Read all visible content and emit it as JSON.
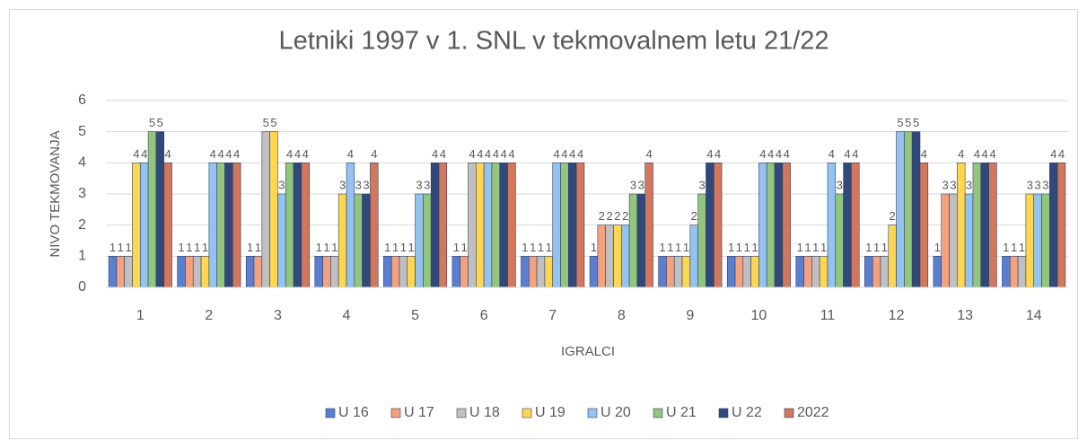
{
  "chart_data": {
    "type": "bar",
    "title": "Letniki 1997 v 1. SNL v tekmovalnem letu 21/22",
    "x_label": "IGRALCI",
    "y_label": "NIVO TEKMOVANJA",
    "categories": [
      "1",
      "2",
      "3",
      "4",
      "5",
      "6",
      "7",
      "8",
      "9",
      "10",
      "11",
      "12",
      "13",
      "14"
    ],
    "series": [
      {
        "name": "U 16",
        "color": "#5a7fd1",
        "values": [
          1,
          1,
          1,
          1,
          1,
          1,
          1,
          1,
          1,
          1,
          1,
          1,
          1,
          1
        ]
      },
      {
        "name": "U 17",
        "color": "#f4a27e",
        "values": [
          1,
          1,
          1,
          1,
          1,
          1,
          1,
          2,
          1,
          1,
          1,
          1,
          3,
          1
        ]
      },
      {
        "name": "U 18",
        "color": "#c0c0c0",
        "values": [
          1,
          1,
          5,
          1,
          1,
          4,
          1,
          2,
          1,
          1,
          1,
          1,
          3,
          1
        ]
      },
      {
        "name": "U 19",
        "color": "#ffd74f",
        "values": [
          4,
          1,
          5,
          3,
          1,
          4,
          1,
          2,
          1,
          1,
          1,
          2,
          4,
          3
        ]
      },
      {
        "name": "U 20",
        "color": "#93c3ee",
        "values": [
          4,
          4,
          3,
          4,
          3,
          4,
          4,
          2,
          2,
          4,
          4,
          5,
          3,
          3
        ]
      },
      {
        "name": "U 21",
        "color": "#94c57c",
        "values": [
          5,
          4,
          4,
          3,
          3,
          4,
          4,
          3,
          3,
          4,
          3,
          5,
          4,
          3
        ]
      },
      {
        "name": "U 22",
        "color": "#30497a",
        "values": [
          5,
          4,
          4,
          3,
          4,
          4,
          4,
          3,
          4,
          4,
          4,
          5,
          4,
          4
        ]
      },
      {
        "name": "2022",
        "color": "#d2775b",
        "values": [
          4,
          4,
          4,
          4,
          4,
          4,
          4,
          4,
          4,
          4,
          4,
          4,
          4,
          4
        ]
      }
    ],
    "ylim": [
      0,
      6
    ],
    "yticks": [
      0,
      1,
      2,
      3,
      4,
      5,
      6
    ],
    "grid": true,
    "legend": "bottom"
  }
}
